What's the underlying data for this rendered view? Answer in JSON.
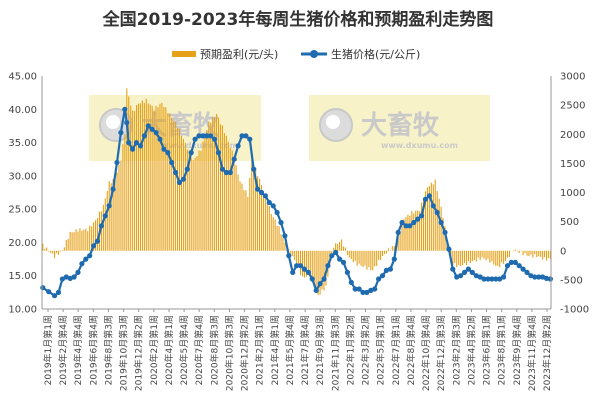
{
  "chart_data": {
    "type": "bar+line",
    "title": "全国2019-2023年每周生猪价格和预期盈利走势图",
    "legend_position": "top",
    "grid": false,
    "categories": [
      "2019年1月第1周",
      "2019年2月第4周",
      "2019年4月第4周",
      "2019年6月第4周",
      "2019年8月第3周",
      "2019年10月第3周",
      "2019年12月第2周",
      "2020年2月第1周",
      "2020年4月第1周",
      "2020年5月第4周",
      "2020年7月第4周",
      "2020年8月第3周",
      "2020年10月第3周",
      "2020年12月第2周",
      "2021年2月第1周",
      "2021年4月第1周",
      "2021年5月第4周",
      "2021年7月第4周",
      "2021年9月第3周",
      "2021年11月第3周",
      "2022年1月第2周",
      "2022年3月第2周",
      "2022年5月第1周",
      "2022年7月第1周",
      "2022年8月第4周",
      "2022年10月第4周",
      "2022年12月第3周",
      "2023年2月第3周",
      "2023年4月第2周",
      "2023年6月第1周",
      "2023年8月第1周",
      "2023年9月第4周",
      "2023年11月第4周",
      "2023年12月第2周"
    ],
    "y_left": {
      "ylim": [
        10,
        45
      ],
      "ticks": [
        "10.00",
        "15.00",
        "20.00",
        "25.00",
        "30.00",
        "35.00",
        "40.00",
        "45.00"
      ]
    },
    "y_right": {
      "ylim": [
        -1000,
        3000
      ],
      "ticks": [
        "-1000",
        "-500",
        "0",
        "500",
        "1000",
        "1500",
        "2000",
        "2500",
        "3000"
      ]
    },
    "series": [
      {
        "name": "预期盈利(元/头)",
        "type": "bar",
        "axis": "right",
        "color": "#e6a118",
        "x": [
          "2019-01-04",
          "2019-02-15",
          "2019-03-15",
          "2019-04-12",
          "2019-05-10",
          "2019-06-14",
          "2019-07-12",
          "2019-08-09",
          "2019-08-30",
          "2019-09-20",
          "2019-10-11",
          "2019-10-25",
          "2019-11-01",
          "2019-11-22",
          "2019-12-13",
          "2020-01-10",
          "2020-02-07",
          "2020-03-06",
          "2020-04-03",
          "2020-05-01",
          "2020-05-29",
          "2020-06-26",
          "2020-07-24",
          "2020-08-21",
          "2020-09-18",
          "2020-10-16",
          "2020-11-13",
          "2020-12-11",
          "2021-01-08",
          "2021-01-22",
          "2021-02-05",
          "2021-03-05",
          "2021-04-02",
          "2021-04-30",
          "2021-05-28",
          "2021-06-25",
          "2021-07-23",
          "2021-08-20",
          "2021-09-17",
          "2021-10-15",
          "2021-11-12",
          "2021-12-10",
          "2022-01-07",
          "2022-02-04",
          "2022-03-04",
          "2022-04-01",
          "2022-04-29",
          "2022-05-27",
          "2022-06-24",
          "2022-07-22",
          "2022-08-19",
          "2022-09-16",
          "2022-10-14",
          "2022-11-11",
          "2022-12-09",
          "2023-01-06",
          "2023-02-03",
          "2023-03-03",
          "2023-03-31",
          "2023-04-28",
          "2023-05-26",
          "2023-06-23",
          "2023-07-21",
          "2023-08-18",
          "2023-09-15",
          "2023-10-13",
          "2023-11-10",
          "2023-12-08",
          "2023-12-29"
        ],
        "values": [
          100,
          -100,
          0,
          300,
          350,
          350,
          500,
          750,
          1150,
          1200,
          1550,
          2000,
          2750,
          2350,
          2500,
          2550,
          2400,
          2500,
          2300,
          2100,
          1800,
          1500,
          1700,
          2150,
          2300,
          2000,
          1650,
          1150,
          900,
          1500,
          1350,
          1000,
          600,
          350,
          0,
          -200,
          -500,
          -450,
          -800,
          -650,
          50,
          150,
          -150,
          -250,
          -300,
          -350,
          -150,
          0,
          100,
          550,
          650,
          700,
          1100,
          1200,
          600,
          -200,
          -250,
          -200,
          -150,
          -100,
          -150,
          -250,
          -150,
          50,
          0,
          -50,
          -50,
          -100,
          -100
        ]
      },
      {
        "name": "生猪价格(元/公斤)",
        "type": "line",
        "axis": "left",
        "color": "#1f6bb0",
        "x": [
          "2019-01-04",
          "2019-01-25",
          "2019-02-15",
          "2019-03-01",
          "2019-03-15",
          "2019-03-29",
          "2019-04-12",
          "2019-04-26",
          "2019-05-10",
          "2019-05-24",
          "2019-06-07",
          "2019-06-21",
          "2019-07-05",
          "2019-07-19",
          "2019-08-02",
          "2019-08-16",
          "2019-08-30",
          "2019-09-13",
          "2019-09-27",
          "2019-10-11",
          "2019-10-25",
          "2019-11-01",
          "2019-11-08",
          "2019-11-22",
          "2019-12-06",
          "2019-12-20",
          "2020-01-03",
          "2020-01-17",
          "2020-01-31",
          "2020-02-14",
          "2020-02-28",
          "2020-03-13",
          "2020-03-27",
          "2020-04-10",
          "2020-04-24",
          "2020-05-08",
          "2020-05-22",
          "2020-06-05",
          "2020-06-19",
          "2020-07-03",
          "2020-07-17",
          "2020-07-31",
          "2020-08-14",
          "2020-08-28",
          "2020-09-11",
          "2020-09-25",
          "2020-10-09",
          "2020-10-23",
          "2020-11-06",
          "2020-11-20",
          "2020-12-04",
          "2020-12-18",
          "2021-01-01",
          "2021-01-15",
          "2021-01-29",
          "2021-02-12",
          "2021-02-26",
          "2021-03-12",
          "2021-03-26",
          "2021-04-09",
          "2021-04-23",
          "2021-05-07",
          "2021-05-21",
          "2021-06-04",
          "2021-06-18",
          "2021-07-02",
          "2021-07-16",
          "2021-07-30",
          "2021-08-13",
          "2021-08-27",
          "2021-09-10",
          "2021-09-24",
          "2021-10-08",
          "2021-10-22",
          "2021-11-05",
          "2021-11-19",
          "2021-12-03",
          "2021-12-17",
          "2021-12-31",
          "2022-01-14",
          "2022-01-28",
          "2022-02-11",
          "2022-02-25",
          "2022-03-11",
          "2022-03-25",
          "2022-04-08",
          "2022-04-22",
          "2022-05-06",
          "2022-05-20",
          "2022-06-03",
          "2022-06-17",
          "2022-07-01",
          "2022-07-15",
          "2022-07-29",
          "2022-08-12",
          "2022-08-26",
          "2022-09-09",
          "2022-09-23",
          "2022-10-07",
          "2022-10-21",
          "2022-11-04",
          "2022-11-18",
          "2022-12-02",
          "2022-12-16",
          "2022-12-30",
          "2023-01-13",
          "2023-01-27",
          "2023-02-10",
          "2023-02-24",
          "2023-03-10",
          "2023-03-24",
          "2023-04-07",
          "2023-04-21",
          "2023-05-05",
          "2023-05-19",
          "2023-06-02",
          "2023-06-16",
          "2023-06-30",
          "2023-07-14",
          "2023-07-28",
          "2023-08-11",
          "2023-08-25",
          "2023-09-08",
          "2023-09-22",
          "2023-10-06",
          "2023-10-20",
          "2023-11-03",
          "2023-11-17",
          "2023-12-01",
          "2023-12-15",
          "2023-12-29"
        ],
        "values": [
          13.2,
          12.6,
          12.0,
          12.5,
          14.5,
          14.8,
          14.6,
          14.8,
          15.5,
          16.8,
          17.5,
          18.0,
          19.5,
          20.2,
          22.5,
          24.0,
          25.5,
          28.0,
          32.0,
          36.5,
          40.0,
          38.0,
          35.0,
          34.0,
          35.0,
          34.5,
          36.0,
          37.5,
          37.0,
          36.5,
          35.5,
          34.0,
          33.5,
          32.0,
          30.5,
          29.0,
          29.5,
          31.0,
          33.5,
          35.5,
          36.0,
          36.0,
          36.0,
          36.0,
          35.5,
          33.5,
          31.0,
          30.5,
          30.5,
          32.5,
          34.5,
          36.0,
          36.0,
          35.5,
          31.0,
          28.0,
          27.5,
          27.0,
          26.0,
          25.5,
          24.5,
          23.0,
          21.0,
          18.0,
          15.5,
          16.5,
          16.5,
          16.0,
          15.5,
          14.5,
          12.8,
          13.8,
          14.5,
          16.5,
          18.0,
          18.5,
          17.5,
          17.0,
          15.5,
          14.0,
          13.0,
          13.0,
          12.5,
          12.5,
          12.8,
          13.0,
          14.5,
          15.0,
          15.8,
          16.0,
          17.5,
          21.5,
          23.0,
          22.5,
          22.5,
          23.0,
          23.5,
          24.0,
          26.5,
          27.0,
          25.5,
          24.5,
          23.0,
          21.5,
          19.0,
          16.0,
          14.8,
          15.0,
          15.5,
          16.0,
          15.5,
          15.0,
          14.8,
          14.5,
          14.5,
          14.5,
          14.5,
          14.5,
          14.8,
          16.5,
          17.0,
          17.0,
          16.5,
          16.0,
          15.5,
          15.0,
          14.8,
          14.8,
          14.8,
          14.6,
          14.5
        ]
      }
    ],
    "watermarks": [
      {
        "text": "大畜牧",
        "subtext": "www.dxumu.com"
      },
      {
        "text": "大畜牧",
        "subtext": "www.dxumu.com"
      }
    ]
  }
}
